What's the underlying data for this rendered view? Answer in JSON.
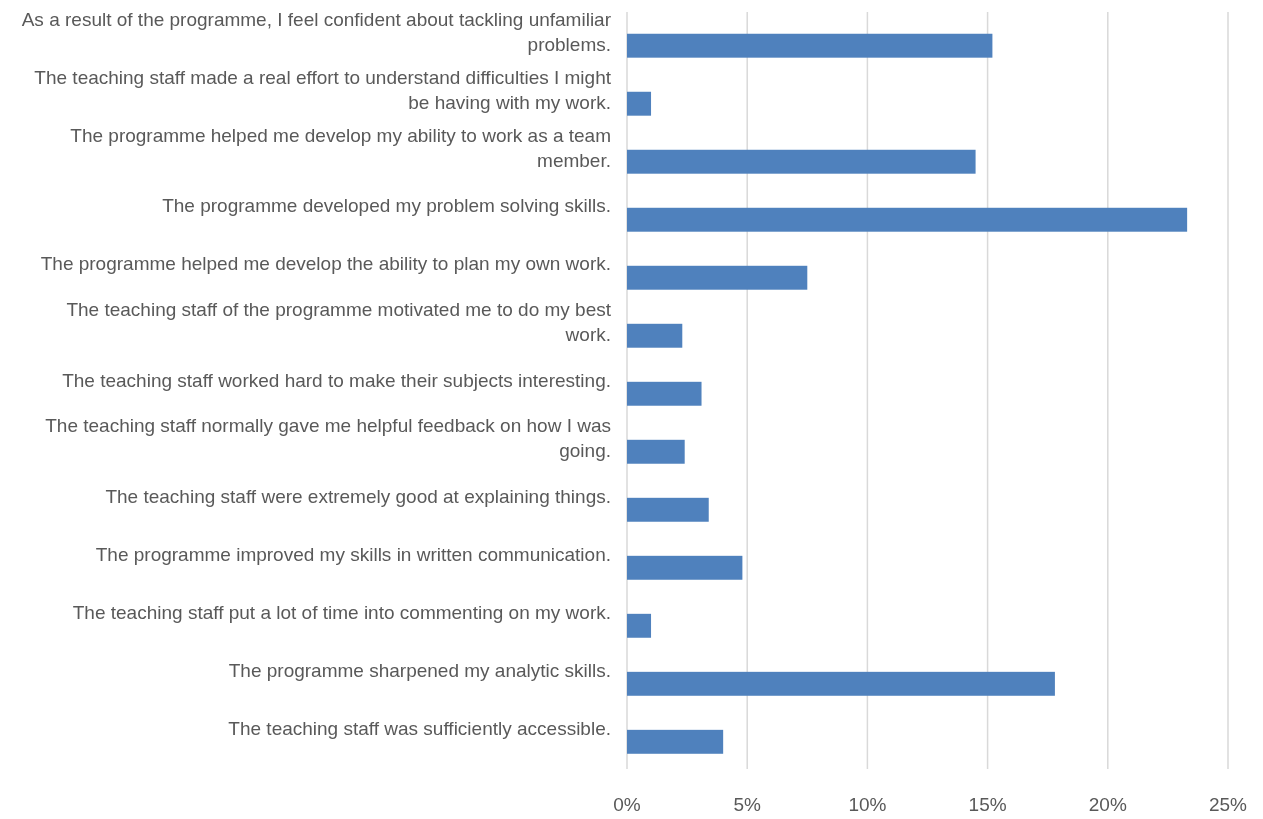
{
  "chart_data": {
    "type": "bar",
    "orientation": "horizontal",
    "categories": [
      "As a result of the programme, I feel confident about tackling unfamiliar problems.",
      "The teaching staff made a real effort to understand difficulties I might be having with my work.",
      "The programme helped me develop my ability to work as a team member.",
      "The programme developed my problem solving skills.",
      "The programme helped me develop the ability to plan my own work.",
      "The teaching staff of the programme motivated me to do my best work.",
      "The teaching staff worked hard to make their subjects interesting.",
      "The teaching staff normally gave me helpful feedback on how I was going.",
      "The teaching staff were extremely good at explaining things.",
      "The programme improved my skills in written communication.",
      "The teaching staff put a lot of time into commenting on my work.",
      "The programme sharpened my analytic skills.",
      "The teaching staff was sufficiently accessible."
    ],
    "values": [
      15.2,
      1.0,
      14.5,
      23.3,
      7.5,
      2.3,
      3.1,
      2.4,
      3.4,
      4.8,
      1.0,
      17.8,
      4.0
    ],
    "color": "#4f81bd",
    "xlim": [
      0,
      25
    ],
    "xticks": [
      {
        "value": 0,
        "label": "0%"
      },
      {
        "value": 5,
        "label": "5%"
      },
      {
        "value": 10,
        "label": "10%"
      },
      {
        "value": 15,
        "label": "15%"
      },
      {
        "value": 20,
        "label": "20%"
      },
      {
        "value": 25,
        "label": "25%"
      }
    ],
    "grid": "x"
  }
}
